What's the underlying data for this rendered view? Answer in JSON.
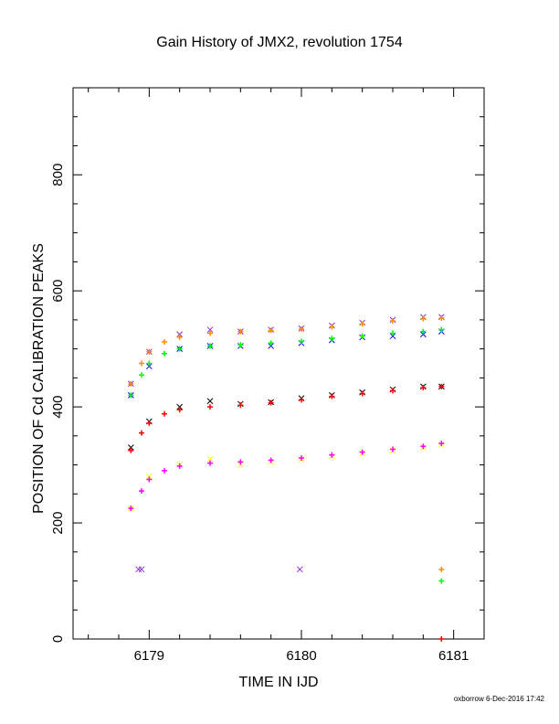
{
  "chart_data": {
    "type": "scatter",
    "title": "Gain History of JMX2, revolution 1754",
    "xlabel": "TIME IN IJD",
    "ylabel": "POSITION OF Cd CALIBRATION PEAKS",
    "footer": "oxborrow 6-Dec-2016 17:42",
    "xlim": [
      6178.5,
      6181.2
    ],
    "ylim": [
      0,
      950
    ],
    "x_ticks": [
      6179,
      6180,
      6181
    ],
    "y_ticks": [
      0,
      200,
      400,
      600,
      800
    ],
    "grid": false,
    "series": [
      {
        "color": "#8a2be2",
        "marker": "x",
        "x": [
          6178.88,
          6179.0,
          6179.2,
          6179.4,
          6179.6,
          6179.8,
          6180.0,
          6180.2,
          6180.4,
          6180.6,
          6180.8,
          6180.92
        ],
        "y": [
          440,
          495,
          525,
          533,
          530,
          533,
          535,
          540,
          545,
          550,
          555,
          555
        ]
      },
      {
        "color": "#ff8c00",
        "marker": "+",
        "x": [
          6178.88,
          6178.95,
          6179.0,
          6179.1,
          6179.2,
          6179.4,
          6179.6,
          6179.8,
          6180.0,
          6180.2,
          6180.4,
          6180.6,
          6180.8,
          6180.92
        ],
        "y": [
          440,
          475,
          495,
          512,
          520,
          527,
          530,
          532,
          534,
          538,
          543,
          548,
          552,
          553
        ]
      },
      {
        "color": "#0000ff",
        "marker": "x",
        "x": [
          6178.88,
          6179.0,
          6179.2,
          6179.4,
          6179.6,
          6179.8,
          6180.0,
          6180.2,
          6180.4,
          6180.6,
          6180.8,
          6180.92
        ],
        "y": [
          420,
          470,
          500,
          505,
          505,
          505,
          510,
          515,
          520,
          522,
          525,
          530
        ]
      },
      {
        "color": "#00ff00",
        "marker": "+",
        "x": [
          6178.88,
          6178.95,
          6179.0,
          6179.1,
          6179.2,
          6179.4,
          6179.6,
          6179.8,
          6180.0,
          6180.2,
          6180.4,
          6180.6,
          6180.8,
          6180.92
        ],
        "y": [
          420,
          455,
          475,
          492,
          500,
          505,
          507,
          510,
          513,
          518,
          522,
          527,
          530,
          533
        ]
      },
      {
        "color": "#000000",
        "marker": "x",
        "x": [
          6178.88,
          6179.0,
          6179.2,
          6179.4,
          6179.6,
          6179.8,
          6180.0,
          6180.2,
          6180.4,
          6180.6,
          6180.8,
          6180.92
        ],
        "y": [
          330,
          375,
          400,
          410,
          405,
          408,
          415,
          420,
          425,
          430,
          435,
          435
        ]
      },
      {
        "color": "#ff0000",
        "marker": "+",
        "x": [
          6178.88,
          6178.95,
          6179.0,
          6179.1,
          6179.2,
          6179.4,
          6179.6,
          6179.8,
          6180.0,
          6180.2,
          6180.4,
          6180.6,
          6180.8,
          6180.92
        ],
        "y": [
          325,
          355,
          372,
          388,
          395,
          400,
          403,
          407,
          412,
          418,
          423,
          428,
          433,
          435
        ]
      },
      {
        "color": "#ffff00",
        "marker": "x",
        "x": [
          6178.88,
          6179.0,
          6179.2,
          6179.4,
          6179.6,
          6179.8,
          6180.0,
          6180.2,
          6180.4,
          6180.6,
          6180.8,
          6180.92
        ],
        "y": [
          225,
          280,
          300,
          310,
          300,
          305,
          310,
          315,
          320,
          325,
          330,
          335
        ]
      },
      {
        "color": "#ff00ff",
        "marker": "+",
        "x": [
          6178.88,
          6178.95,
          6179.0,
          6179.1,
          6179.2,
          6179.4,
          6179.6,
          6179.8,
          6180.0,
          6180.2,
          6180.4,
          6180.6,
          6180.8,
          6180.92
        ],
        "y": [
          225,
          255,
          275,
          290,
          298,
          303,
          305,
          308,
          312,
          317,
          322,
          327,
          332,
          337
        ]
      }
    ],
    "isolated_points": [
      {
        "color": "#8a2be2",
        "marker": "x",
        "x": 6178.93,
        "y": 120
      },
      {
        "color": "#8a2be2",
        "marker": "x",
        "x": 6178.95,
        "y": 120
      },
      {
        "color": "#8a2be2",
        "marker": "x",
        "x": 6179.99,
        "y": 120
      },
      {
        "color": "#ff8c00",
        "marker": "+",
        "x": 6180.92,
        "y": 120
      },
      {
        "color": "#00ff00",
        "marker": "+",
        "x": 6180.92,
        "y": 100
      },
      {
        "color": "#ff0000",
        "marker": "+",
        "x": 6180.92,
        "y": 0
      }
    ]
  }
}
